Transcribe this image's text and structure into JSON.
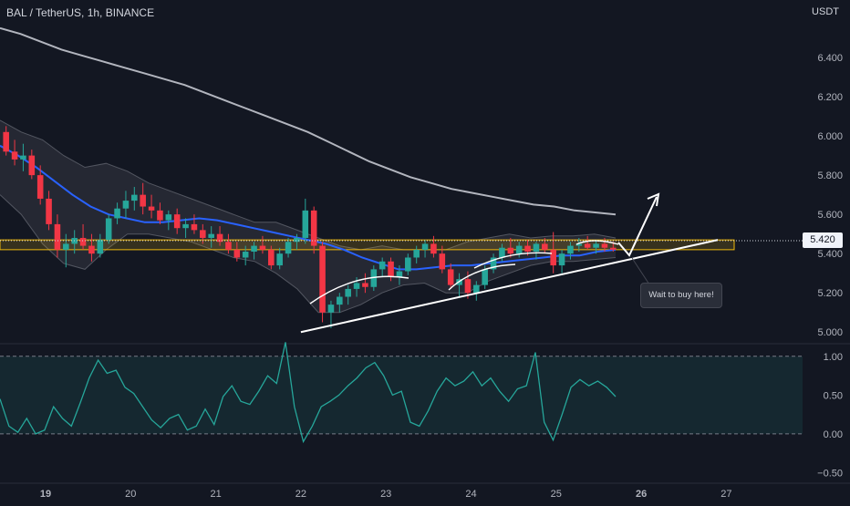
{
  "header": {
    "symbol": "BAL / TetherUS, 1h, BINANCE",
    "currency": "USDT"
  },
  "last_price": "5.420",
  "note": "Wait to buy here!",
  "colors": {
    "up": "#26a69a",
    "down": "#f23645",
    "ma_short": "#2962ff",
    "ma_long": "#b2b5be",
    "zone": "#f0b90b",
    "oscillator": "#26a69a"
  },
  "chart_data": [
    {
      "type": "candlestick",
      "x_ticks": [
        "19",
        "20",
        "21",
        "22",
        "23",
        "24",
        "25",
        "26",
        "27"
      ],
      "y_ticks": [
        "5.000",
        "5.200",
        "5.400",
        "5.600",
        "5.800",
        "6.000",
        "6.200",
        "6.400"
      ],
      "ylim": [
        4.95,
        6.6
      ],
      "ohlc": [
        [
          6.02,
          6.05,
          5.9,
          5.92
        ],
        [
          5.92,
          5.98,
          5.85,
          5.88
        ],
        [
          5.88,
          5.96,
          5.82,
          5.9
        ],
        [
          5.9,
          5.93,
          5.78,
          5.8
        ],
        [
          5.8,
          5.85,
          5.65,
          5.68
        ],
        [
          5.68,
          5.72,
          5.52,
          5.55
        ],
        [
          5.55,
          5.6,
          5.38,
          5.42
        ],
        [
          5.42,
          5.5,
          5.33,
          5.45
        ],
        [
          5.45,
          5.52,
          5.4,
          5.48
        ],
        [
          5.48,
          5.55,
          5.42,
          5.44
        ],
        [
          5.44,
          5.5,
          5.36,
          5.4
        ],
        [
          5.4,
          5.5,
          5.38,
          5.47
        ],
        [
          5.47,
          5.6,
          5.45,
          5.58
        ],
        [
          5.58,
          5.66,
          5.55,
          5.63
        ],
        [
          5.63,
          5.72,
          5.58,
          5.67
        ],
        [
          5.67,
          5.74,
          5.62,
          5.7
        ],
        [
          5.7,
          5.76,
          5.6,
          5.64
        ],
        [
          5.64,
          5.7,
          5.58,
          5.62
        ],
        [
          5.62,
          5.66,
          5.55,
          5.57
        ],
        [
          5.57,
          5.62,
          5.52,
          5.6
        ],
        [
          5.6,
          5.63,
          5.5,
          5.53
        ],
        [
          5.53,
          5.58,
          5.48,
          5.55
        ],
        [
          5.55,
          5.6,
          5.5,
          5.52
        ],
        [
          5.52,
          5.55,
          5.45,
          5.48
        ],
        [
          5.48,
          5.54,
          5.43,
          5.5
        ],
        [
          5.5,
          5.54,
          5.44,
          5.46
        ],
        [
          5.46,
          5.5,
          5.4,
          5.42
        ],
        [
          5.42,
          5.46,
          5.36,
          5.38
        ],
        [
          5.38,
          5.44,
          5.34,
          5.41
        ],
        [
          5.41,
          5.46,
          5.37,
          5.44
        ],
        [
          5.44,
          5.49,
          5.4,
          5.42
        ],
        [
          5.42,
          5.44,
          5.32,
          5.34
        ],
        [
          5.34,
          5.43,
          5.32,
          5.4
        ],
        [
          5.4,
          5.48,
          5.38,
          5.46
        ],
        [
          5.46,
          5.5,
          5.42,
          5.48
        ],
        [
          5.48,
          5.68,
          5.45,
          5.62
        ],
        [
          5.62,
          5.64,
          5.4,
          5.44
        ],
        [
          5.44,
          5.46,
          5.05,
          5.1
        ],
        [
          5.1,
          5.16,
          5.02,
          5.14
        ],
        [
          5.14,
          5.2,
          5.1,
          5.18
        ],
        [
          5.18,
          5.24,
          5.14,
          5.22
        ],
        [
          5.22,
          5.28,
          5.18,
          5.25
        ],
        [
          5.25,
          5.3,
          5.2,
          5.23
        ],
        [
          5.23,
          5.34,
          5.21,
          5.32
        ],
        [
          5.32,
          5.38,
          5.28,
          5.36
        ],
        [
          5.36,
          5.38,
          5.26,
          5.28
        ],
        [
          5.28,
          5.34,
          5.24,
          5.31
        ],
        [
          5.31,
          5.4,
          5.29,
          5.38
        ],
        [
          5.38,
          5.44,
          5.35,
          5.42
        ],
        [
          5.42,
          5.47,
          5.38,
          5.45
        ],
        [
          5.45,
          5.49,
          5.38,
          5.4
        ],
        [
          5.4,
          5.44,
          5.3,
          5.32
        ],
        [
          5.32,
          5.35,
          5.22,
          5.24
        ],
        [
          5.24,
          5.3,
          5.18,
          5.27
        ],
        [
          5.27,
          5.31,
          5.17,
          5.2
        ],
        [
          5.2,
          5.26,
          5.16,
          5.24
        ],
        [
          5.24,
          5.34,
          5.22,
          5.32
        ],
        [
          5.32,
          5.4,
          5.3,
          5.38
        ],
        [
          5.38,
          5.45,
          5.36,
          5.43
        ],
        [
          5.43,
          5.48,
          5.38,
          5.4
        ],
        [
          5.4,
          5.46,
          5.38,
          5.44
        ],
        [
          5.44,
          5.47,
          5.39,
          5.41
        ],
        [
          5.41,
          5.46,
          5.37,
          5.45
        ],
        [
          5.45,
          5.48,
          5.4,
          5.42
        ],
        [
          5.42,
          5.51,
          5.3,
          5.34
        ],
        [
          5.34,
          5.42,
          5.3,
          5.4
        ],
        [
          5.4,
          5.46,
          5.37,
          5.44
        ],
        [
          5.44,
          5.48,
          5.41,
          5.45
        ],
        [
          5.45,
          5.49,
          5.42,
          5.43
        ],
        [
          5.43,
          5.47,
          5.4,
          5.45
        ],
        [
          5.45,
          5.48,
          5.41,
          5.43
        ],
        [
          5.43,
          5.46,
          5.41,
          5.42
        ]
      ],
      "ma_short": [
        5.95,
        5.9,
        5.84,
        5.77,
        5.7,
        5.64,
        5.6,
        5.58,
        5.56,
        5.56,
        5.57,
        5.58,
        5.57,
        5.55,
        5.53,
        5.51,
        5.49,
        5.47,
        5.45,
        5.42,
        5.38,
        5.35,
        5.32,
        5.32,
        5.33,
        5.34,
        5.34,
        5.35,
        5.36,
        5.37,
        5.38,
        5.39,
        5.39,
        5.41,
        5.42
      ],
      "ma_long": [
        6.55,
        6.52,
        6.48,
        6.44,
        6.41,
        6.38,
        6.35,
        6.32,
        6.29,
        6.26,
        6.22,
        6.18,
        6.14,
        6.1,
        6.06,
        6.02,
        5.97,
        5.92,
        5.87,
        5.83,
        5.79,
        5.76,
        5.73,
        5.71,
        5.69,
        5.67,
        5.65,
        5.64,
        5.62,
        5.61,
        5.6
      ],
      "bb_upper": [
        6.08,
        6.02,
        5.98,
        5.9,
        5.84,
        5.86,
        5.82,
        5.76,
        5.72,
        5.68,
        5.64,
        5.6,
        5.56,
        5.56,
        5.52,
        5.48,
        5.44,
        5.42,
        5.44,
        5.42,
        5.42,
        5.42,
        5.46,
        5.48,
        5.5,
        5.48,
        5.49,
        5.49,
        5.5,
        5.48
      ],
      "bb_lower": [
        5.7,
        5.6,
        5.45,
        5.35,
        5.32,
        5.42,
        5.5,
        5.5,
        5.48,
        5.46,
        5.42,
        5.38,
        5.36,
        5.3,
        5.22,
        5.1,
        5.1,
        5.14,
        5.2,
        5.24,
        5.25,
        5.2,
        5.2,
        5.26,
        5.3,
        5.34,
        5.36,
        5.36,
        5.37,
        5.38
      ],
      "zone": [
        5.42,
        5.47
      ],
      "trendline": [
        [
          5.0,
          22
        ],
        [
          5.47,
          26
        ]
      ],
      "projection": [
        "5.40",
        "5.62"
      ]
    },
    {
      "type": "line",
      "name": "oscillator",
      "y_ticks": [
        "1.00",
        "0.50",
        "0.00",
        "−0.50"
      ],
      "ylim": [
        -0.6,
        1.15
      ],
      "bands": [
        0,
        1
      ],
      "values": [
        0.45,
        0.1,
        0.02,
        0.2,
        0.0,
        0.05,
        0.35,
        0.2,
        0.1,
        0.4,
        0.72,
        0.95,
        0.78,
        0.82,
        0.6,
        0.52,
        0.35,
        0.18,
        0.08,
        0.2,
        0.25,
        0.05,
        0.1,
        0.32,
        0.12,
        0.48,
        0.62,
        0.42,
        0.38,
        0.55,
        0.75,
        0.65,
        1.18,
        0.35,
        -0.1,
        0.1,
        0.35,
        0.42,
        0.5,
        0.62,
        0.72,
        0.85,
        0.92,
        0.75,
        0.5,
        0.55,
        0.15,
        0.1,
        0.3,
        0.55,
        0.72,
        0.62,
        0.68,
        0.8,
        0.62,
        0.72,
        0.55,
        0.42,
        0.58,
        0.62,
        1.05,
        0.15,
        -0.08,
        0.25,
        0.6,
        0.7,
        0.62,
        0.68,
        0.6,
        0.48
      ]
    }
  ]
}
